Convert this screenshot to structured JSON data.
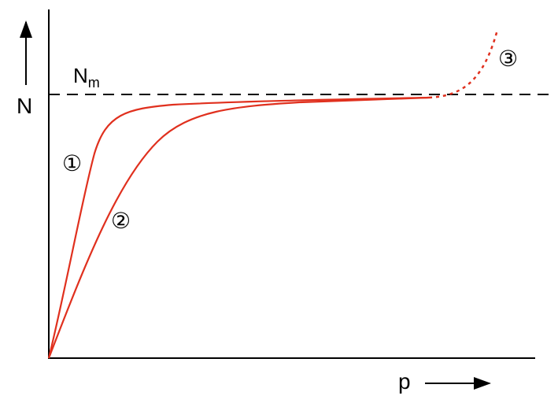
{
  "labels": {
    "y_axis": "N",
    "x_axis": "p",
    "plateau_main": "N",
    "plateau_sub": "m",
    "curve_1": "①",
    "curve_2": "②",
    "curve_3": "③"
  },
  "colors": {
    "curve": "#e0301e",
    "axis": "#000000"
  }
}
